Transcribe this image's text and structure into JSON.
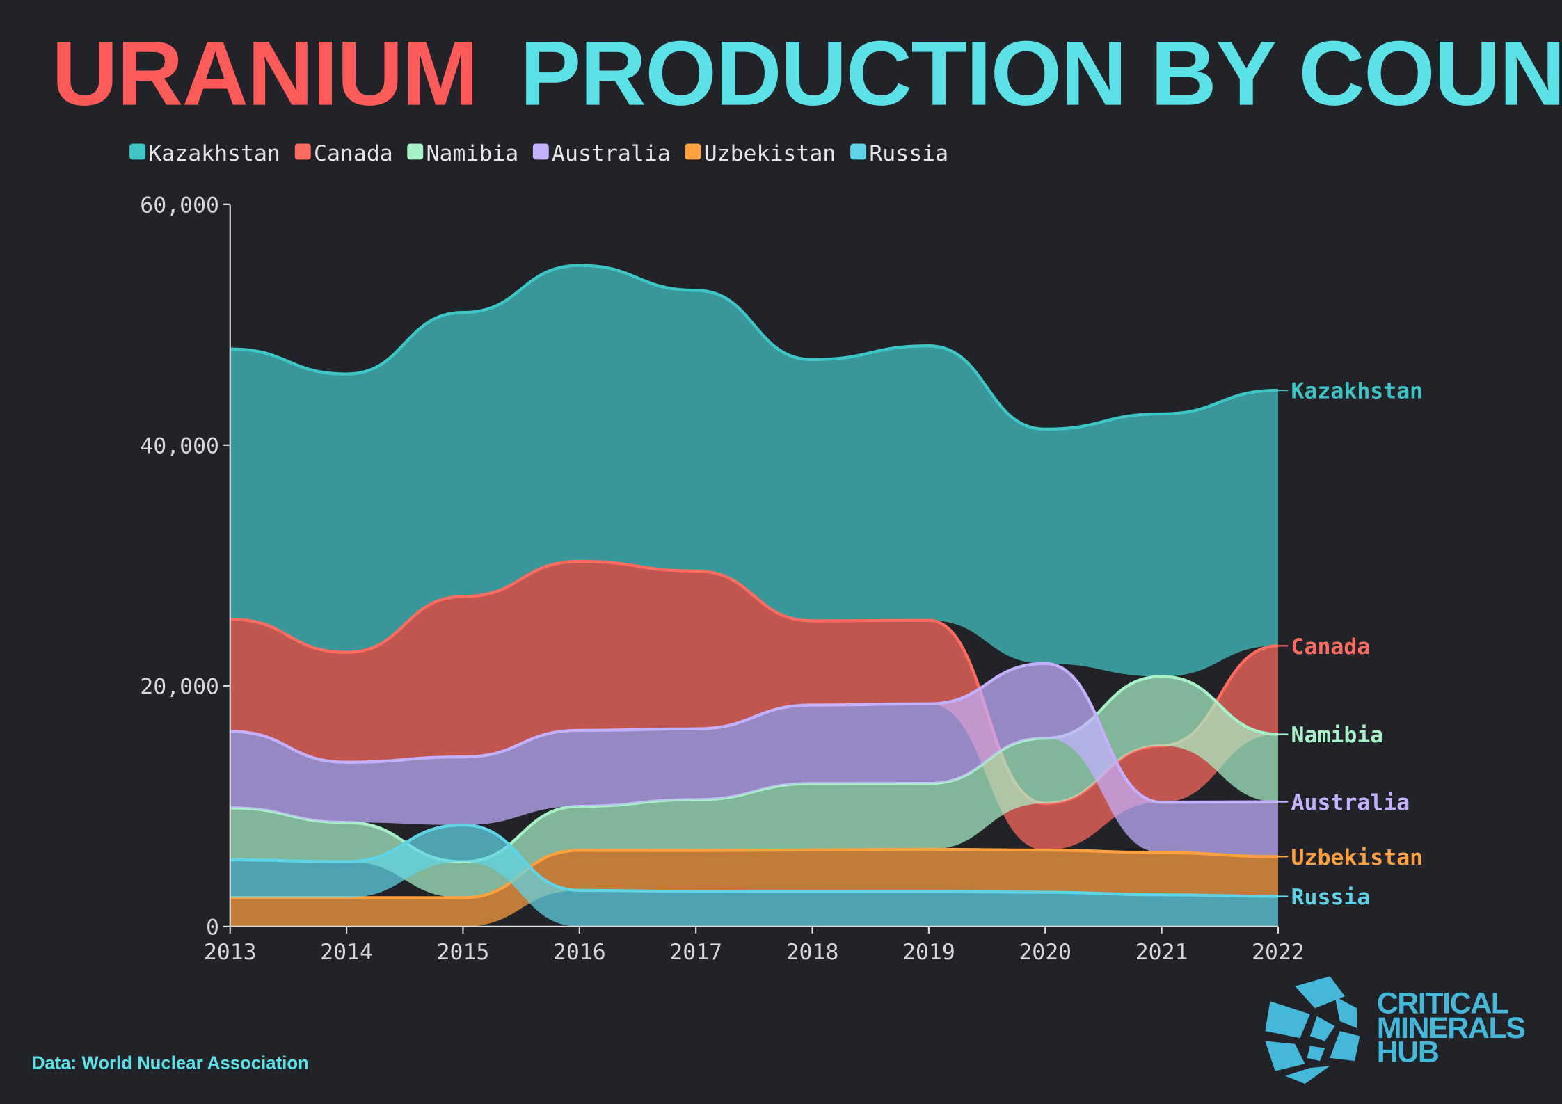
{
  "title": {
    "part1": "URANIUM",
    "part2": "PRODUCTION BY COUNTRY",
    "color1": "#ff5a5a",
    "color2": "#5ce1e6"
  },
  "source": "Data: World Nuclear Association",
  "logo": {
    "lines": [
      "CRITICAL",
      "MINERALS",
      "HUB"
    ],
    "color": "#45b8da"
  },
  "chart_data": {
    "type": "area",
    "subtype": "ranked stacked area (bump area), smallest at bottom each year",
    "title": "URANIUM PRODUCTION BY COUNTRY",
    "xlabel": "",
    "ylabel": "",
    "x": [
      2013,
      2014,
      2015,
      2016,
      2017,
      2018,
      2019,
      2020,
      2021,
      2022
    ],
    "ylim": [
      0,
      60000
    ],
    "yticks": [
      0,
      20000,
      40000,
      60000
    ],
    "ytick_labels": [
      "0",
      "20,000",
      "40,000",
      "60,000"
    ],
    "grid": false,
    "legend": "top-left",
    "series": [
      {
        "name": "Kazakhstan",
        "color": "#3ec6c6",
        "values": [
          22451,
          23127,
          23607,
          24586,
          23321,
          21705,
          22808,
          19477,
          21819,
          21227
        ]
      },
      {
        "name": "Canada",
        "color": "#ff6b61",
        "values": [
          9331,
          9134,
          13325,
          14039,
          13116,
          7001,
          6938,
          3885,
          4693,
          7351
        ]
      },
      {
        "name": "Namibia",
        "color": "#a8f0c8",
        "values": [
          4323,
          3255,
          2993,
          3654,
          4224,
          5525,
          5476,
          5413,
          5753,
          5613
        ]
      },
      {
        "name": "Australia",
        "color": "#c4b0ff",
        "values": [
          6350,
          5001,
          5654,
          6315,
          5882,
          6517,
          6613,
          6203,
          4192,
          4553
        ]
      },
      {
        "name": "Uzbekistan",
        "color": "#ffa040",
        "values": [
          2400,
          2400,
          2385,
          3325,
          3400,
          3450,
          3500,
          3500,
          3500,
          3300
        ]
      },
      {
        "name": "Russia",
        "color": "#5fd4e6",
        "values": [
          3135,
          2990,
          3055,
          3004,
          2917,
          2904,
          2911,
          2846,
          2635,
          2508
        ]
      }
    ]
  }
}
